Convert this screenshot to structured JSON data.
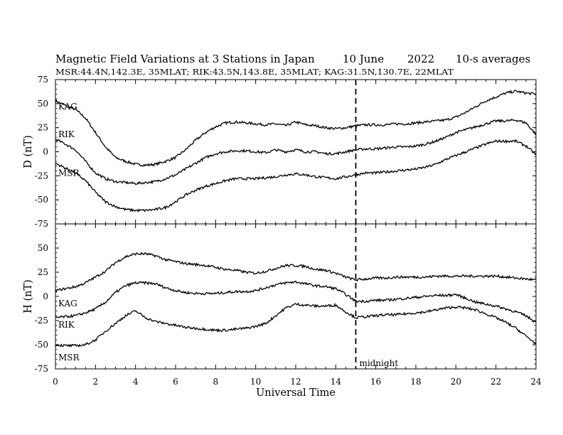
{
  "chart_data": {
    "type": "line",
    "title": "Magnetic Field Variations at 3 Stations in Japan",
    "date": "10 June",
    "year": "2022",
    "averaging": "10-s averages",
    "subtitle": "MSR:44.4N,142.3E, 35MLAT;   RIK:43.5N,143.8E, 35MLAT;   KAG:31.5N,130.7E, 22MLAT",
    "xlabel": "Universal Time",
    "xlim": [
      0,
      24
    ],
    "xticks": [
      0,
      2,
      4,
      6,
      8,
      10,
      12,
      14,
      16,
      18,
      20,
      22,
      24
    ],
    "marker": {
      "x": 15,
      "label": "midnight"
    },
    "panels": [
      {
        "ylabel": "D (nT)",
        "ylim": [
          -75,
          75
        ],
        "yticks": [
          75,
          50,
          25,
          0,
          -25,
          -50,
          -75
        ],
        "series": [
          {
            "name": "KAG",
            "x": [
              0,
              0.5,
              1,
              1.5,
              2,
              2.5,
              3,
              3.5,
              4,
              4.5,
              5,
              5.5,
              6,
              6.5,
              7,
              7.5,
              8,
              8.5,
              9,
              9.5,
              10,
              10.5,
              11,
              11.5,
              12,
              12.5,
              13,
              13.5,
              14,
              14.5,
              15,
              15.5,
              16,
              16.5,
              17,
              17.5,
              18,
              18.5,
              19,
              19.5,
              20,
              20.5,
              21,
              21.5,
              22,
              22.5,
              23,
              23.5,
              24
            ],
            "values": [
              53,
              48,
              44,
              35,
              20,
              5,
              -6,
              -10,
              -13,
              -14,
              -13,
              -10,
              -6,
              2,
              12,
              20,
              26,
              30,
              31,
              30,
              29,
              28,
              29,
              27,
              31,
              28,
              27,
              25,
              24,
              25,
              27,
              28,
              28,
              28,
              29,
              29,
              30,
              31,
              32,
              33,
              36,
              41,
              47,
              53,
              57,
              61,
              63,
              61,
              60
            ]
          },
          {
            "name": "RIK",
            "x": [
              0,
              0.5,
              1,
              1.5,
              2,
              2.5,
              3,
              3.5,
              4,
              4.5,
              5,
              5.5,
              6,
              6.5,
              7,
              7.5,
              8,
              8.5,
              9,
              9.5,
              10,
              10.5,
              11,
              11.5,
              12,
              12.5,
              13,
              13.5,
              14,
              14.5,
              15,
              15.5,
              16,
              16.5,
              17,
              17.5,
              18,
              18.5,
              19,
              19.5,
              20,
              20.5,
              21,
              21.5,
              22,
              22.5,
              23,
              23.5,
              24
            ],
            "values": [
              13,
              8,
              2,
              -10,
              -22,
              -28,
              -31,
              -32,
              -33,
              -32,
              -31,
              -28,
              -24,
              -18,
              -12,
              -6,
              -2,
              0,
              1,
              1,
              0,
              -1,
              2,
              0,
              2,
              0,
              0,
              -2,
              -2,
              0,
              2,
              3,
              3,
              4,
              5,
              5,
              6,
              8,
              11,
              15,
              20,
              23,
              26,
              29,
              32,
              32,
              33,
              30,
              18
            ]
          },
          {
            "name": "MSR",
            "x": [
              0,
              0.5,
              1,
              1.5,
              2,
              2.5,
              3,
              3.5,
              4,
              4.5,
              5,
              5.5,
              6,
              6.5,
              7,
              7.5,
              8,
              8.5,
              9,
              9.5,
              10,
              10.5,
              11,
              11.5,
              12,
              12.5,
              13,
              13.5,
              14,
              14.5,
              15,
              15.5,
              16,
              16.5,
              17,
              17.5,
              18,
              18.5,
              19,
              19.5,
              20,
              20.5,
              21,
              21.5,
              22,
              22.5,
              23,
              23.5,
              24
            ],
            "values": [
              -12,
              -17,
              -22,
              -30,
              -42,
              -52,
              -57,
              -60,
              -61,
              -61,
              -60,
              -58,
              -52,
              -45,
              -40,
              -36,
              -33,
              -30,
              -28,
              -28,
              -28,
              -27,
              -26,
              -24,
              -23,
              -24,
              -26,
              -27,
              -28,
              -26,
              -24,
              -22,
              -22,
              -21,
              -20,
              -19,
              -18,
              -16,
              -13,
              -8,
              -4,
              0,
              4,
              8,
              11,
              11,
              11,
              6,
              -3
            ]
          }
        ]
      },
      {
        "ylabel": "H (nT)",
        "ylim": [
          -75,
          75
        ],
        "yticks": [
          75,
          50,
          25,
          0,
          -25,
          -50,
          -75
        ],
        "series": [
          {
            "name": "KAG",
            "x": [
              0,
              0.5,
              1,
              1.5,
              2,
              2.5,
              3,
              3.5,
              4,
              4.5,
              5,
              5.5,
              6,
              6.5,
              7,
              7.5,
              8,
              8.5,
              9,
              9.5,
              10,
              10.5,
              11,
              11.5,
              12,
              12.5,
              13,
              13.5,
              14,
              14.5,
              15,
              15.5,
              16,
              16.5,
              17,
              17.5,
              18,
              18.5,
              19,
              19.5,
              20,
              20.5,
              21,
              21.5,
              22,
              22.5,
              23,
              23.5,
              24
            ],
            "values": [
              6,
              8,
              10,
              14,
              20,
              26,
              35,
              41,
              44,
              44,
              42,
              38,
              36,
              34,
              33,
              32,
              30,
              28,
              27,
              25,
              24,
              26,
              29,
              32,
              32,
              31,
              28,
              27,
              24,
              20,
              17,
              18,
              19,
              19,
              20,
              20,
              20,
              20,
              21,
              21,
              21,
              21,
              21,
              21,
              21,
              20,
              19,
              18,
              17
            ]
          },
          {
            "name": "RIK",
            "x": [
              0,
              0.5,
              1,
              1.5,
              2,
              2.5,
              3,
              3.5,
              4,
              4.5,
              5,
              5.5,
              6,
              6.5,
              7,
              7.5,
              8,
              8.5,
              9,
              9.5,
              10,
              10.5,
              11,
              11.5,
              12,
              12.5,
              13,
              13.5,
              14,
              14.5,
              15,
              15.5,
              16,
              16.5,
              17,
              17.5,
              18,
              18.5,
              19,
              19.5,
              20,
              20.5,
              21,
              21.5,
              22,
              22.5,
              23,
              23.5,
              24
            ],
            "values": [
              -22,
              -21,
              -20,
              -17,
              -13,
              -6,
              4,
              11,
              14,
              14,
              13,
              9,
              6,
              4,
              3,
              3,
              3,
              4,
              5,
              5,
              6,
              9,
              12,
              14,
              15,
              13,
              11,
              10,
              8,
              2,
              -5,
              -5,
              -4,
              -4,
              -3,
              -2,
              -1,
              0,
              1,
              1,
              2,
              -2,
              -6,
              -8,
              -10,
              -13,
              -16,
              -20,
              -27
            ]
          },
          {
            "name": "MSR",
            "x": [
              0,
              0.5,
              1,
              1.5,
              2,
              2.5,
              3,
              3.5,
              4,
              4.5,
              5,
              5.5,
              6,
              6.5,
              7,
              7.5,
              8,
              8.5,
              9,
              9.5,
              10,
              10.5,
              11,
              11.5,
              12,
              12.5,
              13,
              13.5,
              14,
              14.5,
              15,
              15.5,
              16,
              16.5,
              17,
              17.5,
              18,
              18.5,
              19,
              19.5,
              20,
              20.5,
              21,
              21.5,
              22,
              22.5,
              23,
              23.5,
              24
            ],
            "values": [
              -50,
              -51,
              -51,
              -50,
              -45,
              -36,
              -28,
              -20,
              -15,
              -22,
              -26,
              -28,
              -30,
              -32,
              -33,
              -34,
              -35,
              -35,
              -34,
              -33,
              -31,
              -28,
              -20,
              -12,
              -8,
              -9,
              -10,
              -10,
              -9,
              -16,
              -22,
              -21,
              -20,
              -19,
              -19,
              -18,
              -17,
              -16,
              -14,
              -12,
              -11,
              -12,
              -14,
              -18,
              -22,
              -27,
              -33,
              -41,
              -49
            ]
          }
        ]
      }
    ]
  }
}
